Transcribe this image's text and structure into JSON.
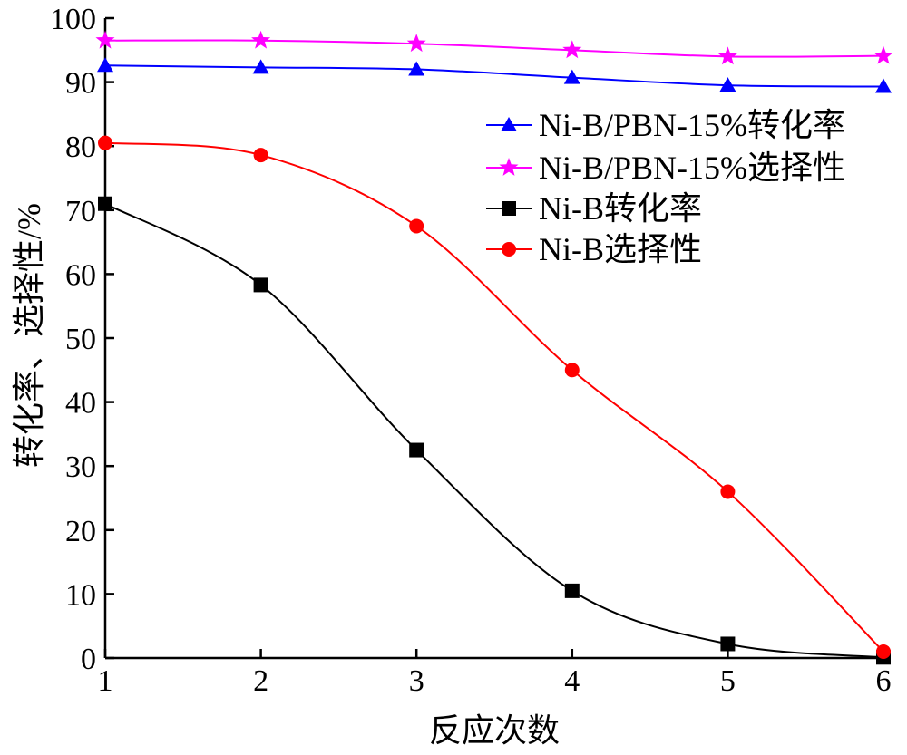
{
  "chart_data": {
    "type": "line",
    "xlabel": "反应次数",
    "ylabel": "转化率、选择性/%",
    "x": [
      1,
      2,
      3,
      4,
      5,
      6
    ],
    "xlim": [
      1,
      6
    ],
    "ylim": [
      0,
      100
    ],
    "xticks": [
      "1",
      "2",
      "3",
      "4",
      "5",
      "6"
    ],
    "yticks": [
      "0",
      "10",
      "20",
      "30",
      "40",
      "50",
      "60",
      "70",
      "80",
      "90",
      "100"
    ],
    "grid": false,
    "legend_position": "right",
    "series": [
      {
        "name": "Ni-B/PBN-15%转化率",
        "color": "#0000ff",
        "marker": "triangle",
        "values": [
          92.6,
          92.3,
          92.0,
          90.7,
          89.5,
          89.3
        ]
      },
      {
        "name": "Ni-B/PBN-15%选择性",
        "color": "#ff00ff",
        "marker": "star",
        "values": [
          96.5,
          96.5,
          96.0,
          95.0,
          94.0,
          94.1
        ]
      },
      {
        "name": "Ni-B转化率",
        "color": "#000000",
        "marker": "square",
        "values": [
          71.0,
          58.3,
          32.5,
          10.5,
          2.2,
          0.1
        ]
      },
      {
        "name": "Ni-B选择性",
        "color": "#ff0000",
        "marker": "circle",
        "values": [
          80.5,
          78.6,
          67.5,
          45.0,
          26.0,
          1.0
        ]
      }
    ]
  }
}
